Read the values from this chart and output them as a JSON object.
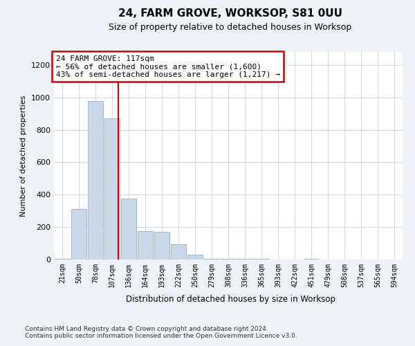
{
  "title": "24, FARM GROVE, WORKSOP, S81 0UU",
  "subtitle": "Size of property relative to detached houses in Worksop",
  "xlabel": "Distribution of detached houses by size in Worksop",
  "ylabel": "Number of detached properties",
  "bins": [
    "21sqm",
    "50sqm",
    "78sqm",
    "107sqm",
    "136sqm",
    "164sqm",
    "193sqm",
    "222sqm",
    "250sqm",
    "279sqm",
    "308sqm",
    "336sqm",
    "365sqm",
    "393sqm",
    "422sqm",
    "451sqm",
    "479sqm",
    "508sqm",
    "537sqm",
    "565sqm",
    "594sqm"
  ],
  "bar_values": [
    5,
    310,
    975,
    870,
    375,
    175,
    170,
    95,
    30,
    5,
    5,
    5,
    5,
    0,
    0,
    5,
    0,
    0,
    0,
    0,
    0
  ],
  "bar_color": "#c8d8e8",
  "bar_edgecolor": "#9ab0c8",
  "vline_color": "#cc0000",
  "vline_x": 3.37,
  "annotation_text": "24 FARM GROVE: 117sqm\n← 56% of detached houses are smaller (1,600)\n43% of semi-detached houses are larger (1,217) →",
  "annotation_box_facecolor": "#ffffff",
  "annotation_box_edgecolor": "#cc0000",
  "ylim": [
    0,
    1280
  ],
  "yticks": [
    0,
    200,
    400,
    600,
    800,
    1000,
    1200
  ],
  "footer_text": "Contains HM Land Registry data © Crown copyright and database right 2024.\nContains public sector information licensed under the Open Government Licence v3.0.",
  "background_color": "#eef2f7",
  "plot_background": "#ffffff",
  "grid_color": "#d0d8e4"
}
